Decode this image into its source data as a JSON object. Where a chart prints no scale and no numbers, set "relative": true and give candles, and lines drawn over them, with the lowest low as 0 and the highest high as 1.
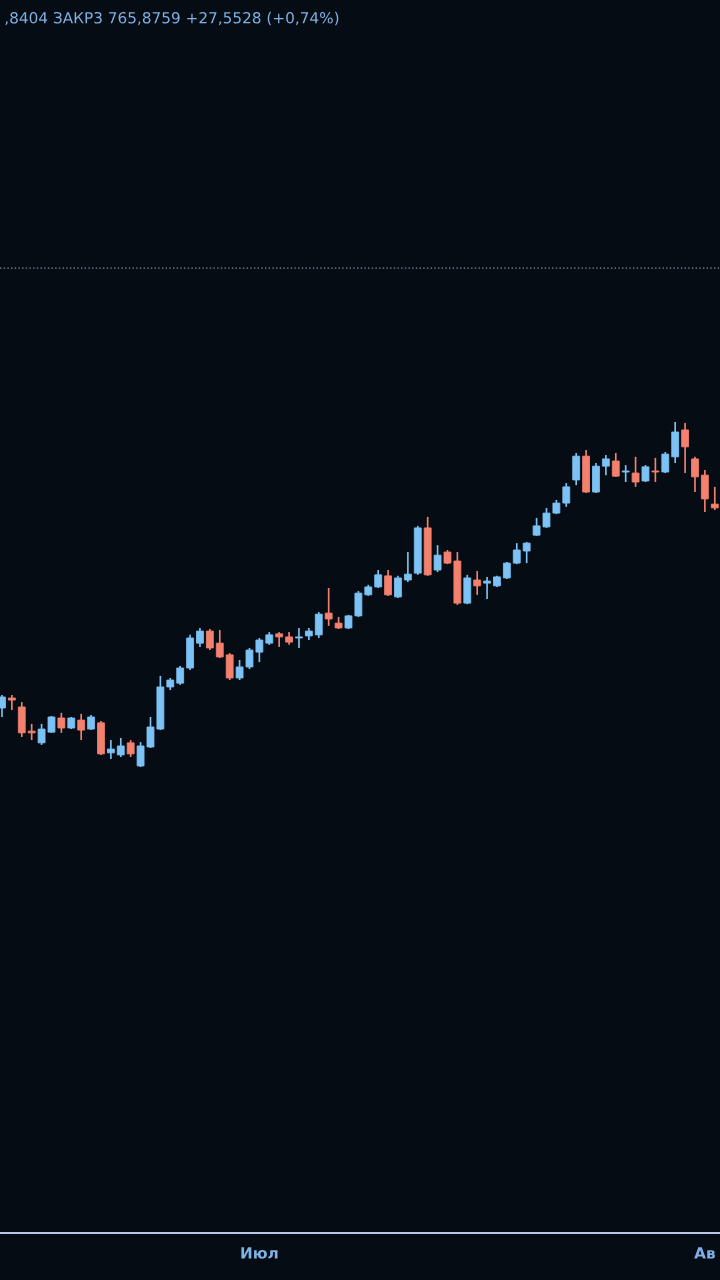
{
  "chart_data": {
    "type": "candlestick",
    "title": ",8404 ЗАКР3 765,8759 +27,5528 (+0,74%)",
    "relative": true,
    "tick_labels": "x",
    "categories": [
      null,
      null,
      null,
      null,
      null,
      null,
      null,
      null,
      null,
      null,
      null,
      null,
      null,
      null,
      null,
      null,
      null,
      null,
      null,
      null,
      null,
      null,
      null,
      null,
      null,
      null,
      "Июл",
      null,
      null,
      null,
      null,
      null,
      null,
      null,
      null,
      null,
      null,
      null,
      null,
      null,
      null,
      null,
      null,
      null,
      null,
      null,
      null,
      null,
      null,
      null,
      null,
      null,
      null,
      null,
      null,
      null,
      null,
      null,
      null,
      null,
      null,
      null,
      null,
      null,
      null,
      null,
      null,
      null,
      null,
      null,
      null,
      "Ав",
      null
    ],
    "ohlc": [
      [
        0.171,
        0.209,
        0.145,
        0.203
      ],
      [
        0.2,
        0.209,
        0.165,
        0.194
      ],
      [
        0.174,
        0.188,
        0.087,
        0.099
      ],
      [
        0.104,
        0.125,
        0.078,
        0.099
      ],
      [
        0.07,
        0.125,
        0.064,
        0.11
      ],
      [
        0.101,
        0.148,
        0.099,
        0.145
      ],
      [
        0.142,
        0.157,
        0.099,
        0.113
      ],
      [
        0.113,
        0.145,
        0.11,
        0.142
      ],
      [
        0.136,
        0.154,
        0.078,
        0.107
      ],
      [
        0.11,
        0.151,
        0.107,
        0.145
      ],
      [
        0.128,
        0.133,
        0.035,
        0.038
      ],
      [
        0.041,
        0.078,
        0.023,
        0.052
      ],
      [
        0.035,
        0.084,
        0.029,
        0.061
      ],
      [
        0.07,
        0.078,
        0.029,
        0.038
      ],
      [
        0.003,
        0.072,
        0.0,
        0.061
      ],
      [
        0.058,
        0.145,
        0.055,
        0.116
      ],
      [
        0.11,
        0.264,
        0.107,
        0.232
      ],
      [
        0.232,
        0.258,
        0.223,
        0.252
      ],
      [
        0.243,
        0.293,
        0.238,
        0.287
      ],
      [
        0.287,
        0.383,
        0.281,
        0.374
      ],
      [
        0.359,
        0.403,
        0.348,
        0.394
      ],
      [
        0.394,
        0.4,
        0.339,
        0.345
      ],
      [
        0.359,
        0.397,
        0.316,
        0.319
      ],
      [
        0.325,
        0.33,
        0.252,
        0.258
      ],
      [
        0.258,
        0.31,
        0.252,
        0.29
      ],
      [
        0.29,
        0.345,
        0.284,
        0.339
      ],
      [
        0.333,
        0.374,
        0.304,
        0.368
      ],
      [
        0.359,
        0.391,
        0.354,
        0.383
      ],
      [
        0.386,
        0.391,
        0.348,
        0.377
      ],
      [
        0.377,
        0.391,
        0.354,
        0.362
      ],
      [
        0.374,
        0.403,
        0.345,
        0.377
      ],
      [
        0.38,
        0.403,
        0.368,
        0.394
      ],
      [
        0.383,
        0.449,
        0.374,
        0.443
      ],
      [
        0.446,
        0.519,
        0.409,
        0.429
      ],
      [
        0.417,
        0.435,
        0.4,
        0.403
      ],
      [
        0.403,
        0.441,
        0.4,
        0.438
      ],
      [
        0.438,
        0.51,
        0.435,
        0.504
      ],
      [
        0.499,
        0.528,
        0.496,
        0.522
      ],
      [
        0.522,
        0.571,
        0.519,
        0.557
      ],
      [
        0.554,
        0.571,
        0.496,
        0.499
      ],
      [
        0.493,
        0.554,
        0.49,
        0.548
      ],
      [
        0.542,
        0.623,
        0.536,
        0.559
      ],
      [
        0.562,
        0.699,
        0.557,
        0.693
      ],
      [
        0.693,
        0.725,
        0.554,
        0.557
      ],
      [
        0.571,
        0.643,
        0.565,
        0.614
      ],
      [
        0.623,
        0.629,
        0.588,
        0.591
      ],
      [
        0.597,
        0.623,
        0.47,
        0.475
      ],
      [
        0.475,
        0.557,
        0.472,
        0.548
      ],
      [
        0.542,
        0.568,
        0.499,
        0.525
      ],
      [
        0.533,
        0.551,
        0.487,
        0.539
      ],
      [
        0.525,
        0.554,
        0.522,
        0.551
      ],
      [
        0.548,
        0.594,
        0.545,
        0.591
      ],
      [
        0.591,
        0.649,
        0.588,
        0.629
      ],
      [
        0.626,
        0.652,
        0.591,
        0.649
      ],
      [
        0.672,
        0.722,
        0.67,
        0.699
      ],
      [
        0.696,
        0.751,
        0.693,
        0.736
      ],
      [
        0.736,
        0.774,
        0.733,
        0.765
      ],
      [
        0.765,
        0.823,
        0.754,
        0.812
      ],
      [
        0.832,
        0.91,
        0.817,
        0.901
      ],
      [
        0.901,
        0.919,
        0.794,
        0.797
      ],
      [
        0.797,
        0.881,
        0.794,
        0.872
      ],
      [
        0.872,
        0.904,
        0.846,
        0.893
      ],
      [
        0.887,
        0.91,
        0.841,
        0.843
      ],
      [
        0.855,
        0.875,
        0.826,
        0.858
      ],
      [
        0.852,
        0.899,
        0.812,
        0.826
      ],
      [
        0.829,
        0.875,
        0.826,
        0.87
      ],
      [
        0.858,
        0.896,
        0.826,
        0.855
      ],
      [
        0.855,
        0.913,
        0.852,
        0.907
      ],
      [
        0.899,
        1.0,
        0.881,
        0.971
      ],
      [
        0.977,
        0.997,
        0.852,
        0.928
      ],
      [
        0.893,
        0.899,
        0.797,
        0.841
      ],
      [
        0.846,
        0.861,
        0.739,
        0.777
      ],
      [
        0.762,
        0.812,
        0.745,
        0.751
      ]
    ],
    "colors": [
      "#7cc2f4",
      "#f4806e",
      "#f4806e",
      "#f4806e",
      "#7cc2f4",
      "#7cc2f4",
      "#f4806e",
      "#7cc2f4",
      "#f4806e",
      "#7cc2f4",
      "#f4806e",
      "#7cc2f4",
      "#7cc2f4",
      "#f4806e",
      "#7cc2f4",
      "#7cc2f4",
      "#7cc2f4",
      "#7cc2f4",
      "#7cc2f4",
      "#7cc2f4",
      "#7cc2f4",
      "#f4806e",
      "#f4806e",
      "#f4806e",
      "#7cc2f4",
      "#7cc2f4",
      "#7cc2f4",
      "#7cc2f4",
      "#f4806e",
      "#f4806e",
      "#7cc2f4",
      "#7cc2f4",
      "#7cc2f4",
      "#f4806e",
      "#f4806e",
      "#7cc2f4",
      "#7cc2f4",
      "#7cc2f4",
      "#7cc2f4",
      "#f4806e",
      "#7cc2f4",
      "#7cc2f4",
      "#7cc2f4",
      "#f4806e",
      "#7cc2f4",
      "#f4806e",
      "#f4806e",
      "#7cc2f4",
      "#f4806e",
      "#7cc2f4",
      "#7cc2f4",
      "#7cc2f4",
      "#7cc2f4",
      "#7cc2f4",
      "#7cc2f4",
      "#7cc2f4",
      "#7cc2f4",
      "#7cc2f4",
      "#7cc2f4",
      "#f4806e",
      "#7cc2f4",
      "#7cc2f4",
      "#f4806e",
      "#7cc2f4",
      "#f4806e",
      "#7cc2f4",
      "#f4806e",
      "#7cc2f4",
      "#7cc2f4",
      "#f4806e",
      "#f4806e",
      "#f4806e",
      "#f4806e"
    ],
    "ref_lines": [
      {
        "axis": "y",
        "value": 1.446,
        "color": "#7a8fa8",
        "line_style": "dotted"
      }
    ]
  }
}
